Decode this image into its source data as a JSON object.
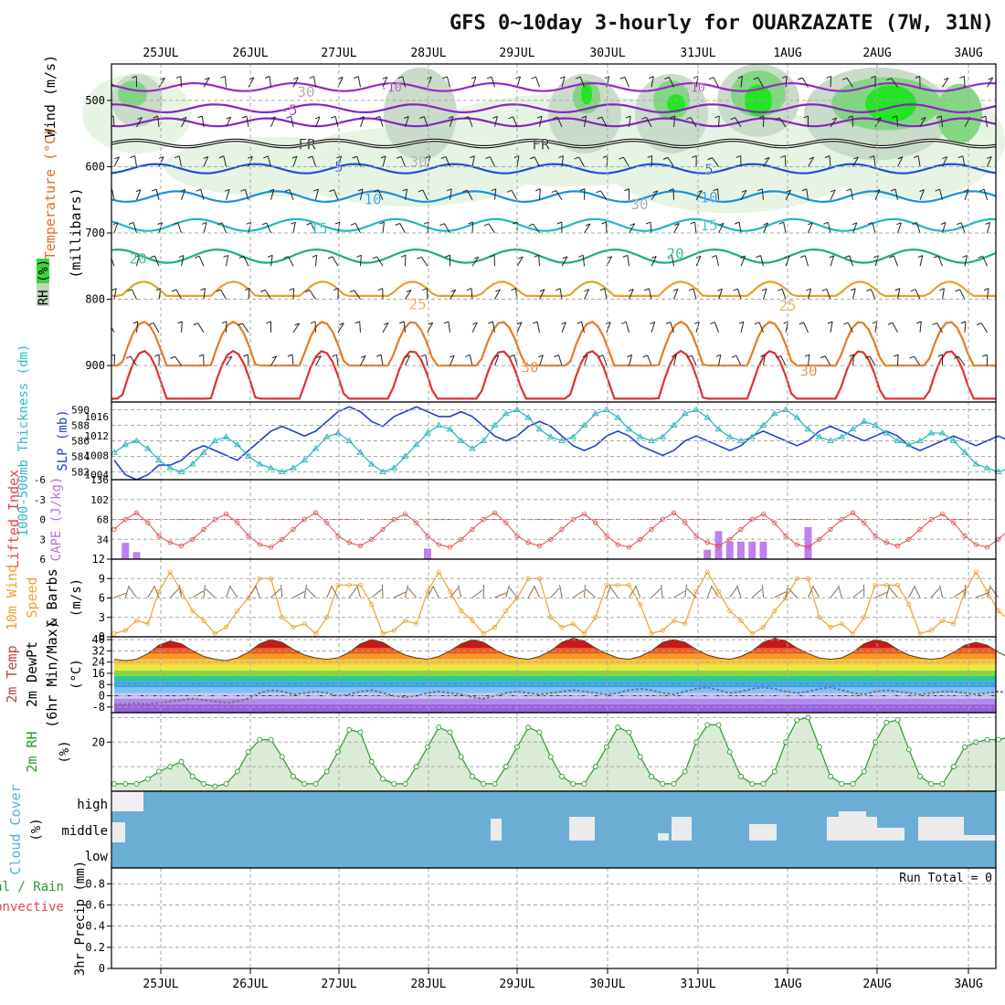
{
  "chart_data": {
    "type": "meteogram",
    "title": "GFS 0~10day 3-hourly for OUARZAZATE (7W, 31N)",
    "dates": [
      "25JUL",
      "26JUL",
      "27JUL",
      "28JUL",
      "29JUL",
      "30JUL",
      "31JUL",
      "1AUG",
      "2AUG",
      "3AUG"
    ],
    "steps_per_day": 8,
    "colors": {
      "grid": "#a8a8a8",
      "cloud_blue": "#6aaed6",
      "cloud_white": "#ebebeb",
      "cape_bar": "#c07ff0",
      "li_line": "#e34848",
      "wind_line": "#f0a030",
      "rh_line": "#2a9a2a",
      "rh_fill": "#dcebd7",
      "slp_line": "#2040d0",
      "thick_line": "#30b8c0",
      "green_bright": "#1ee61e",
      "green_mid": "#7ed67e",
      "green_gray": "#c7d9c7",
      "green_pale": "#e6f3e3"
    },
    "upper_air": {
      "ylabel": "(millibars)",
      "left_labels": [
        "Wind (m/s)",
        "Temperature (°C)",
        "RH (%)"
      ],
      "levels": [
        500,
        600,
        700,
        800,
        900
      ],
      "ylim": [
        445,
        955
      ],
      "isotherms": [
        {
          "value": -10,
          "base": 480,
          "amp": 6,
          "color": "#9a28c8",
          "label": "-10"
        },
        {
          "value": -5,
          "base": 512,
          "amp": 6,
          "color": "#8a24c0",
          "label": "-5"
        },
        {
          "value": -2,
          "base": 533,
          "amp": 6,
          "color": "#8a24c0",
          "label": ""
        },
        {
          "value": 0,
          "base": 565,
          "amp": 5,
          "color": "#111111",
          "label": "FR"
        },
        {
          "value": 5,
          "base": 603,
          "amp": 7,
          "color": "#2050d0",
          "label": "5"
        },
        {
          "value": 10,
          "base": 645,
          "amp": 8,
          "color": "#1b90d8",
          "label": "10"
        },
        {
          "value": 15,
          "base": 688,
          "amp": 9,
          "color": "#20b8c0",
          "label": "15"
        },
        {
          "value": 20,
          "base": 735,
          "amp": 10,
          "color": "#18b070",
          "label": "20"
        },
        {
          "value": 25,
          "base": 795,
          "amp": 18,
          "color": "#e8a030",
          "label": "25"
        },
        {
          "value": 30,
          "base": 900,
          "amp": 55,
          "color": "#e87a20",
          "label": "30"
        },
        {
          "value": 35,
          "base": 950,
          "amp": 60,
          "color": "#e03030",
          "label": ""
        }
      ],
      "contour_labels": [
        "30",
        "30",
        "30",
        "-10",
        "-5",
        "-10",
        "FR",
        "FR",
        "5",
        "5",
        "10",
        "10",
        "15",
        "15",
        "20",
        "20",
        "25",
        "25",
        "30",
        "30"
      ]
    },
    "slp_thickness": {
      "left_label_1": "1000-500mb Thickness (dm)",
      "left_label_2": "SLP (mb)",
      "thickness_ticks": [
        582,
        584,
        586,
        588,
        590
      ],
      "thickness_ylim": [
        581,
        591
      ],
      "slp_ticks": [
        1004,
        1008,
        1012,
        1016
      ],
      "slp_ylim": [
        1003,
        1019
      ],
      "slp": [
        1007,
        1004,
        1003,
        1004,
        1006,
        1006,
        1007,
        1009,
        1010,
        1009,
        1008,
        1007,
        1009,
        1011,
        1013,
        1014,
        1013,
        1012,
        1013,
        1015,
        1017,
        1018,
        1017,
        1015,
        1014,
        1016,
        1017,
        1018,
        1017,
        1016,
        1016,
        1017,
        1016,
        1014,
        1012,
        1011,
        1012,
        1014,
        1015,
        1014,
        1012,
        1010,
        1009,
        1010,
        1012,
        1013,
        1012,
        1010,
        1009,
        1008,
        1009,
        1011,
        1012,
        1011,
        1010,
        1009,
        1010,
        1012,
        1013,
        1012,
        1011,
        1010,
        1011,
        1013,
        1014,
        1013,
        1012,
        1011,
        1012,
        1013,
        1012,
        1010,
        1009,
        1010,
        1011,
        1012,
        1011,
        1010,
        1011,
        1012,
        1011
      ],
      "thickness": [
        584.5,
        585.5,
        586.0,
        585.0,
        583.5,
        582.5,
        582.0,
        583.0,
        584.5,
        586.0,
        586.5,
        585.5,
        584.0,
        583.0,
        582.5,
        582.0,
        582.5,
        583.5,
        585.0,
        586.5,
        587.0,
        586.0,
        584.5,
        583.0,
        582.0,
        582.5,
        584.0,
        585.5,
        587.0,
        588.0,
        587.5,
        586.0,
        585.0,
        586.0,
        588.0,
        589.5,
        590.0,
        589.0,
        587.5,
        586.5,
        586.0,
        586.5,
        588.0,
        589.5,
        590.0,
        589.0,
        587.5,
        586.5,
        586.0,
        586.5,
        588.0,
        589.5,
        590.0,
        589.0,
        587.5,
        586.5,
        586.0,
        586.5,
        588.0,
        589.5,
        590.0,
        589.0,
        587.5,
        586.5,
        586.0,
        586.5,
        587.5,
        588.5,
        588.0,
        587.0,
        586.0,
        585.5,
        586.0,
        587.0,
        587.0,
        586.0,
        584.5,
        583.0,
        582.5,
        582.0,
        582.5
      ]
    },
    "cape_li": {
      "left_label_1": "Lifted Index",
      "left_label_2": "CAPE (J/kg)",
      "li_ticks": [
        "-6",
        "-3",
        "0",
        "3",
        "6"
      ],
      "li_ylim": [
        6,
        -6
      ],
      "cape_ticks": [
        "34",
        "68",
        "102",
        "136"
      ],
      "cape_ylim": [
        0,
        136
      ],
      "cape": [
        0,
        28,
        12,
        0,
        0,
        0,
        0,
        0,
        0,
        0,
        0,
        0,
        0,
        0,
        0,
        0,
        0,
        0,
        0,
        0,
        0,
        0,
        0,
        0,
        0,
        0,
        0,
        0,
        18,
        0,
        0,
        0,
        0,
        0,
        0,
        0,
        0,
        0,
        0,
        0,
        0,
        0,
        0,
        0,
        0,
        0,
        0,
        0,
        0,
        0,
        0,
        0,
        0,
        16,
        48,
        30,
        30,
        30,
        30,
        0,
        0,
        0,
        55,
        0,
        0,
        0,
        0,
        0,
        0,
        0,
        0,
        0,
        0,
        0,
        0,
        0,
        0,
        0,
        0,
        0
      ],
      "li": [
        1.5,
        0.0,
        -1.0,
        0.5,
        2.5,
        3.5,
        4.0,
        3.0,
        1.5,
        0.0,
        -0.8,
        0.5,
        2.5,
        3.8,
        4.2,
        3.0
      ],
      "li_zero_line": 0
    },
    "wind10m": {
      "left_label_1": "10m Wind",
      "left_label_2": "Speed",
      "left_label_3": "& Barbs",
      "unit": "(m/s)",
      "ticks": [
        0,
        3,
        6,
        9,
        12
      ],
      "ylim": [
        0,
        12
      ]
    },
    "temp2m": {
      "left_label_1": "2m Temp",
      "left_label_2": "2m DewPt",
      "left_label_3": "(6hr Min/Max)",
      "unit": "(°C)",
      "ticks": [
        -8,
        0,
        8,
        16,
        24,
        32,
        40
      ],
      "ylim": [
        -12,
        42
      ],
      "band_colors": [
        "#9a60e0",
        "#b08af0",
        "#c8c8f8",
        "#7cc4f8",
        "#3aa0f0",
        "#2ec89a",
        "#7fdc3a",
        "#e8e840",
        "#f8c838",
        "#f89a28",
        "#f05818",
        "#c81818"
      ],
      "temp": [
        26,
        25,
        26,
        30,
        36,
        39,
        37,
        32,
        28,
        26,
        25,
        27,
        31,
        37,
        40,
        38,
        33,
        29,
        27,
        26,
        27,
        31,
        37,
        40,
        38,
        33,
        29,
        27,
        26,
        28,
        32,
        37,
        40,
        38,
        33,
        29,
        27,
        26,
        28,
        32,
        38,
        41,
        39,
        34,
        30,
        27,
        26,
        28,
        32,
        38,
        40,
        38,
        33,
        29,
        27,
        26,
        28,
        32,
        38,
        41,
        39,
        34,
        30,
        27,
        26,
        27,
        31,
        37,
        40,
        38,
        33,
        29,
        27,
        26,
        27,
        31,
        36,
        38,
        36,
        31,
        27
      ],
      "dew": [
        -6,
        -6,
        -5.5,
        -6,
        -5,
        -4,
        -3,
        -2,
        -3,
        -4,
        -5,
        -4,
        -2,
        2,
        4,
        3,
        1,
        2,
        3,
        2,
        0,
        1,
        3,
        4,
        2,
        0,
        -1,
        0,
        2,
        3,
        2,
        1,
        -1,
        -2,
        0,
        2,
        3,
        2,
        1,
        2,
        3,
        4,
        3,
        2,
        1,
        2,
        4,
        5,
        4,
        2,
        1,
        3,
        5,
        6,
        4,
        2,
        3,
        5,
        6,
        5,
        3,
        2,
        3,
        5,
        6,
        4,
        2,
        1,
        3,
        4,
        3,
        2,
        1,
        2,
        3,
        3,
        2,
        1,
        2,
        3,
        2
      ]
    },
    "rh2m": {
      "left_label": "2m RH",
      "unit": "(%)",
      "ticks": [
        20
      ],
      "ylim": [
        0,
        32
      ],
      "values": [
        3,
        3,
        3,
        5,
        8,
        10,
        12,
        6,
        3,
        2,
        3,
        8,
        16,
        21,
        21,
        14,
        6,
        3,
        3,
        8,
        16,
        25,
        24,
        12,
        5,
        3,
        3,
        10,
        18,
        26,
        24,
        14,
        6,
        3,
        3,
        10,
        18,
        26,
        24,
        14,
        6,
        3,
        3,
        10,
        18,
        26,
        24,
        14,
        6,
        3,
        3,
        8,
        20,
        27,
        27,
        16,
        6,
        3,
        3,
        8,
        20,
        29,
        30,
        18,
        6,
        3,
        3,
        8,
        20,
        28,
        29,
        17,
        6,
        3,
        3,
        10,
        18,
        20,
        21,
        21,
        22
      ]
    },
    "cloud_cover": {
      "left_label": "Cloud Cover",
      "unit": "(%)",
      "levels": [
        "high",
        "middle",
        "low"
      ],
      "note": "sky shown blue; pale patches = cloud"
    },
    "precip": {
      "left_label_1": "Total / Rain",
      "left_label_2": "Convective",
      "ylabel": "3hr Precip (mm)",
      "ticks": [
        "0",
        "0.2",
        "0.4",
        "0.6",
        "0.8"
      ],
      "ylim": [
        0,
        0.95
      ],
      "run_total_label": "Run Total = 0",
      "values": []
    }
  }
}
